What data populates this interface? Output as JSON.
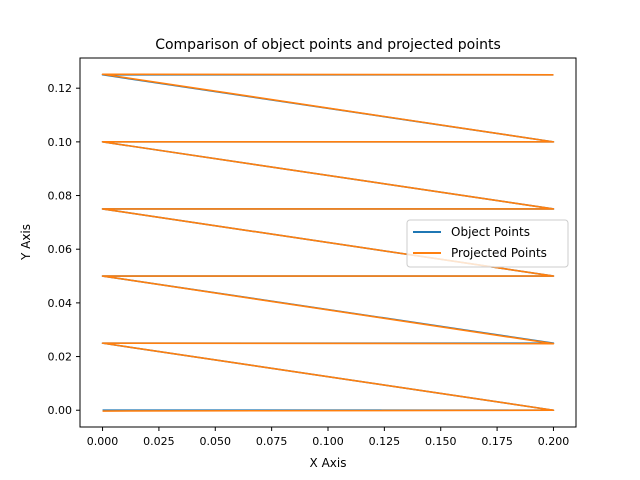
{
  "chart_data": {
    "type": "line",
    "title": "Comparison of object points and projected points",
    "xlabel": "X Axis",
    "ylabel": "Y Axis",
    "xlim": [
      -0.01,
      0.21
    ],
    "ylim": [
      -0.00625,
      0.13125
    ],
    "grid": false,
    "legend_position": "center-right",
    "xticks": [
      "0.000",
      "0.025",
      "0.050",
      "0.075",
      "0.100",
      "0.125",
      "0.150",
      "0.175",
      "0.200"
    ],
    "yticks": [
      "0.00",
      "0.02",
      "0.04",
      "0.06",
      "0.08",
      "0.10",
      "0.12"
    ],
    "series": [
      {
        "name": "Object Points",
        "color": "#1f77b4",
        "x": [
          0.0,
          0.2,
          0.0,
          0.2,
          0.0,
          0.2,
          0.0,
          0.2,
          0.0,
          0.2,
          0.0,
          0.2
        ],
        "y": [
          0.0,
          0.0,
          0.025,
          0.025,
          0.05,
          0.05,
          0.075,
          0.075,
          0.1,
          0.1,
          0.125,
          0.125
        ]
      },
      {
        "name": "Projected Points",
        "color": "#ff7f0e",
        "x": [
          0.0,
          0.2,
          0.0,
          0.2,
          0.0,
          0.2,
          0.0,
          0.2,
          0.0,
          0.2,
          0.0,
          0.2
        ],
        "y": [
          -0.0003,
          0.0,
          0.025,
          0.0248,
          0.05,
          0.05,
          0.075,
          0.075,
          0.1,
          0.1,
          0.1252,
          0.125
        ]
      }
    ]
  }
}
